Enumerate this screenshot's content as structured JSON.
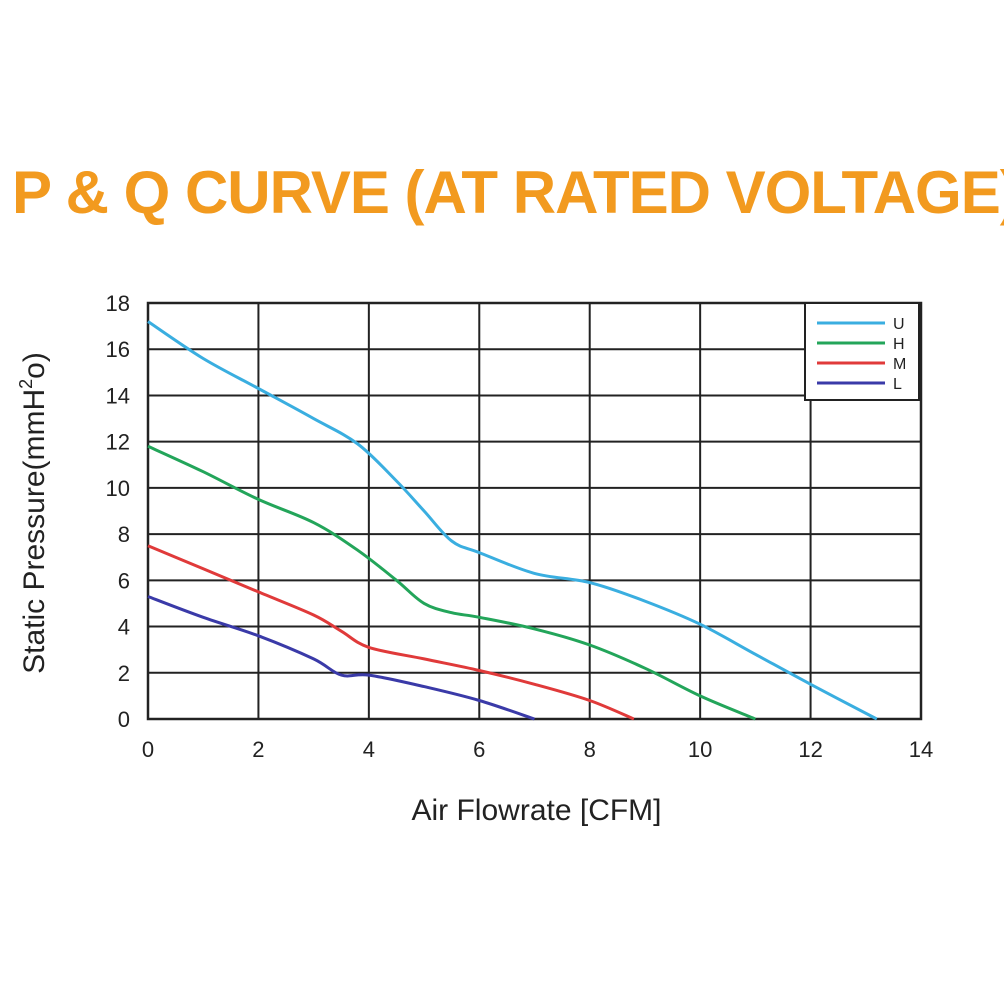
{
  "chart_data": {
    "type": "line",
    "title": "P & Q CURVE (AT RATED VOLTAGE)",
    "xlabel": "Air  Flowrate   [CFM]",
    "ylabel_main": "Static Pressure(mmH",
    "ylabel_sup": "2",
    "ylabel_end": "o)",
    "xlim": [
      0,
      14
    ],
    "ylim": [
      0,
      18
    ],
    "xticks": [
      "0",
      "2",
      "4",
      "6",
      "8",
      "10",
      "12",
      "14"
    ],
    "yticks": [
      "0",
      "2",
      "4",
      "6",
      "8",
      "10",
      "12",
      "14",
      "16",
      "18"
    ],
    "grid": true,
    "legend_position": "top-right",
    "series": [
      {
        "name": "U",
        "color": "#3aaee0",
        "points": [
          [
            0,
            17.2
          ],
          [
            1,
            15.6
          ],
          [
            2,
            14.3
          ],
          [
            3,
            13.0
          ],
          [
            3.8,
            11.9
          ],
          [
            4.5,
            10.3
          ],
          [
            5,
            9.0
          ],
          [
            5.5,
            7.7
          ],
          [
            6,
            7.2
          ],
          [
            7,
            6.3
          ],
          [
            8,
            5.9
          ],
          [
            9,
            5.1
          ],
          [
            10,
            4.1
          ],
          [
            11,
            2.8
          ],
          [
            12,
            1.5
          ],
          [
            13.2,
            0
          ]
        ]
      },
      {
        "name": "H",
        "color": "#23a55a",
        "points": [
          [
            0,
            11.8
          ],
          [
            1,
            10.7
          ],
          [
            2,
            9.5
          ],
          [
            3,
            8.5
          ],
          [
            3.8,
            7.3
          ],
          [
            4.5,
            6.0
          ],
          [
            5,
            5.0
          ],
          [
            5.5,
            4.6
          ],
          [
            6,
            4.4
          ],
          [
            7,
            3.9
          ],
          [
            8,
            3.2
          ],
          [
            9,
            2.2
          ],
          [
            10,
            1.0
          ],
          [
            11,
            0
          ]
        ]
      },
      {
        "name": "M",
        "color": "#e03a3a",
        "points": [
          [
            0,
            7.5
          ],
          [
            1,
            6.5
          ],
          [
            2,
            5.5
          ],
          [
            3,
            4.5
          ],
          [
            3.5,
            3.8
          ],
          [
            4,
            3.1
          ],
          [
            5,
            2.6
          ],
          [
            6,
            2.1
          ],
          [
            7,
            1.5
          ],
          [
            8,
            0.8
          ],
          [
            8.8,
            0
          ]
        ]
      },
      {
        "name": "L",
        "color": "#3a3aa8",
        "points": [
          [
            0,
            5.3
          ],
          [
            1,
            4.4
          ],
          [
            2,
            3.6
          ],
          [
            3,
            2.6
          ],
          [
            3.5,
            1.9
          ],
          [
            4,
            1.9
          ],
          [
            5,
            1.4
          ],
          [
            6,
            0.8
          ],
          [
            7,
            0
          ]
        ]
      }
    ]
  }
}
